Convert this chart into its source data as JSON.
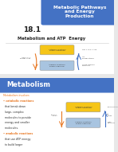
{
  "bg_color": "#e8e8e8",
  "slide1": {
    "header_bg": "#4472c4",
    "header_text": "Metabolic Pathways\nand Energy\nProduction",
    "header_text_color": "#ffffff",
    "subheader": "18.1",
    "subheader2": "Metabolism and ATP  Energy",
    "slide_bg": "#ffffff",
    "border_color": "#f0a000"
  },
  "slide2": {
    "header_bg": "#4472c4",
    "header_text": "Metabolism",
    "header_text_color": "#ffffff",
    "slide_bg": "#ffffff",
    "border_color": "#f0a000",
    "body_lines": [
      [
        "Metabolism involves",
        "#e87722",
        "normal"
      ],
      [
        "• catabolic reactions",
        "#e87722",
        "bold"
      ],
      [
        "  that break down",
        "#333333",
        "normal"
      ],
      [
        "  large, complex",
        "#333333",
        "normal"
      ],
      [
        "  molecules to provide",
        "#333333",
        "normal"
      ],
      [
        "  energy and smaller",
        "#333333",
        "normal"
      ],
      [
        "  molecules.",
        "#333333",
        "normal"
      ],
      [
        "• anabolic reactions",
        "#e87722",
        "bold"
      ],
      [
        "  that use ATP energy",
        "#333333",
        "normal"
      ],
      [
        "  to build larger",
        "#333333",
        "normal"
      ]
    ]
  },
  "diagram": {
    "box_yellow": "#f5c518",
    "box_blue": "#a8c4e0",
    "arrow_orange": "#e87722",
    "arrow_blue": "#4472c4",
    "text_dark": "#333333"
  }
}
